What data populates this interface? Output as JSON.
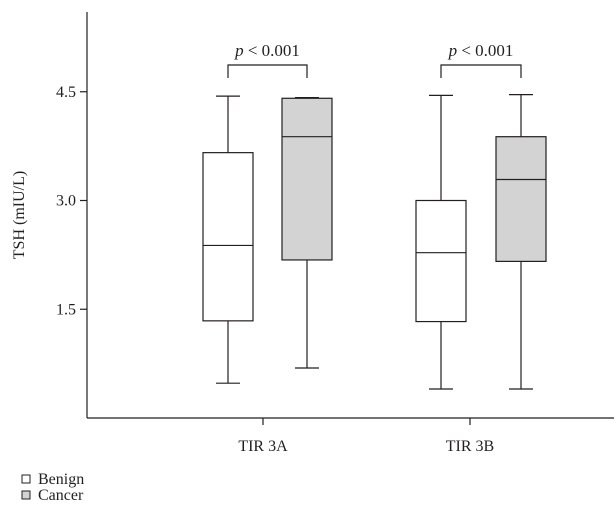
{
  "chart_data": {
    "type": "box",
    "title": "",
    "xlabel": "",
    "ylabel": "TSH (mIU/L)",
    "categories": [
      "TIR 3A",
      "TIR 3B"
    ],
    "ylim": [
      0,
      5.6
    ],
    "yticks": [
      1.5,
      3.0,
      4.5
    ],
    "ytick_labels": [
      "1.5",
      "3.0",
      "4.5"
    ],
    "grid": false,
    "legend": "bottom-left",
    "series": [
      {
        "name": "Benign",
        "color": "#ffffff",
        "boxes": [
          {
            "min": 0.48,
            "q1": 1.34,
            "median": 2.38,
            "q3": 3.66,
            "max": 4.44
          },
          {
            "min": 0.4,
            "q1": 1.33,
            "median": 2.28,
            "q3": 3.0,
            "max": 4.45
          }
        ]
      },
      {
        "name": "Cancer",
        "color": "#d3d3d3",
        "boxes": [
          {
            "min": 0.69,
            "q1": 2.18,
            "median": 3.88,
            "q3": 4.41,
            "max": 4.42
          },
          {
            "min": 0.4,
            "q1": 2.16,
            "median": 3.29,
            "q3": 3.88,
            "max": 4.46
          }
        ]
      }
    ],
    "annotations": [
      {
        "category": "TIR 3A",
        "text": "p < 0.001"
      },
      {
        "category": "TIR 3B",
        "text": "p < 0.001"
      }
    ]
  },
  "colors": {
    "axis": "#231f20",
    "text": "#231f20",
    "box_stroke": "#231f20"
  }
}
